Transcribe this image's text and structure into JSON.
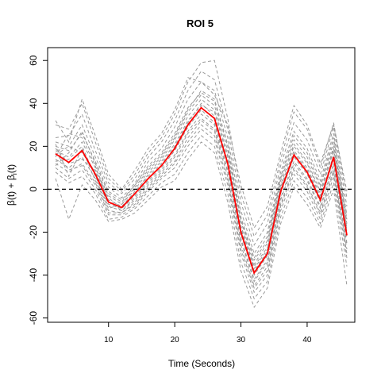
{
  "chart_data": {
    "type": "line",
    "title": "ROI 5",
    "xlabel": "Time (Seconds)",
    "ylabel_parts": {
      "p1": "β(t) + β",
      "sub": "i",
      "p2": "(t)"
    },
    "xlim": [
      0.8,
      47.2
    ],
    "ylim": [
      -62,
      66
    ],
    "x_ticks": [
      10,
      20,
      30,
      40
    ],
    "x_tick_labels": [
      "10",
      "20",
      "30",
      "40"
    ],
    "y_ticks": [
      -60,
      -40,
      -20,
      0,
      20,
      40,
      60
    ],
    "y_tick_labels": [
      "-60",
      "-40",
      "-20",
      "0",
      "20",
      "40",
      "60"
    ],
    "reference_line": {
      "y": 0,
      "style": "dashed",
      "color": "#000000"
    },
    "x": [
      2,
      4,
      6,
      8,
      10,
      12,
      14,
      16,
      18,
      20,
      22,
      24,
      26,
      28,
      30,
      32,
      34,
      36,
      38,
      40,
      42,
      44,
      46
    ],
    "mean_series": {
      "color": "#ff0000",
      "style": "solid",
      "values": [
        16.5,
        12.5,
        18,
        7,
        -6,
        -8.5,
        -2,
        5,
        11,
        19,
        30,
        38,
        33,
        12,
        -20,
        -39,
        -30,
        -1,
        16,
        8,
        -5,
        15,
        -21.5
      ]
    },
    "individual_series_style": {
      "color": "#9a9a9a",
      "style": "dashed"
    },
    "individual_series": [
      [
        18,
        15,
        22,
        10,
        -3,
        -7,
        0,
        8,
        14,
        23,
        34,
        42,
        37,
        16,
        -17,
        -36,
        -27,
        2,
        20,
        12,
        -2,
        18,
        -18
      ],
      [
        14,
        10,
        15,
        5,
        -8,
        -10,
        -4,
        3,
        9,
        16,
        27,
        35,
        30,
        9,
        -23,
        -42,
        -33,
        -4,
        13,
        5,
        -8,
        12,
        -25
      ],
      [
        20,
        18,
        26,
        13,
        -1,
        -5,
        2,
        11,
        17,
        26,
        38,
        45,
        41,
        20,
        -14,
        -33,
        -24,
        5,
        23,
        15,
        1,
        22,
        -15
      ],
      [
        12,
        8,
        12,
        3,
        -10,
        -11,
        -6,
        1,
        7,
        13,
        24,
        32,
        27,
        6,
        -26,
        -45,
        -36,
        -7,
        10,
        2,
        -11,
        9,
        -28
      ],
      [
        22,
        20,
        30,
        15,
        1,
        -4,
        3,
        13,
        19,
        29,
        42,
        50,
        46,
        24,
        -10,
        -30,
        -20,
        8,
        27,
        19,
        4,
        26,
        -12
      ],
      [
        10,
        5,
        9,
        0,
        -12,
        -12,
        -8,
        -1,
        5,
        10,
        20,
        28,
        23,
        2,
        -30,
        -48,
        -40,
        -10,
        7,
        -1,
        -14,
        6,
        -32
      ],
      [
        24,
        25,
        35,
        18,
        3,
        -2,
        5,
        15,
        22,
        32,
        46,
        55,
        51,
        28,
        -6,
        -26,
        -16,
        11,
        31,
        23,
        7,
        29,
        -8
      ],
      [
        8,
        3,
        6,
        -2,
        -14,
        -13,
        -9,
        -3,
        3,
        7,
        17,
        25,
        20,
        -2,
        -34,
        -51,
        -43,
        -13,
        4,
        -4,
        -16,
        3,
        -36
      ],
      [
        30,
        28,
        40,
        22,
        5,
        -1,
        7,
        17,
        24,
        35,
        50,
        59,
        60,
        33,
        -2,
        -22,
        -12,
        14,
        36,
        28,
        10,
        31,
        -4
      ],
      [
        5,
        -14,
        2,
        -5,
        -15,
        -14,
        -11,
        -5,
        1,
        4,
        14,
        22,
        17,
        -6,
        -38,
        -55,
        -46,
        -16,
        1,
        -7,
        -18,
        0,
        -45
      ],
      [
        32,
        22,
        42,
        25,
        7,
        0,
        9,
        19,
        26,
        37,
        52,
        50,
        44,
        30,
        2,
        -18,
        -8,
        17,
        39,
        30,
        12,
        30,
        -1
      ],
      [
        16,
        20,
        17,
        8,
        -5,
        -8,
        -1,
        6,
        12,
        20,
        31,
        40,
        34,
        13,
        -19,
        -38,
        -29,
        0,
        17,
        9,
        -4,
        16,
        -20
      ],
      [
        13,
        14,
        20,
        6,
        -7,
        -9,
        -3,
        4,
        10,
        18,
        29,
        37,
        31,
        11,
        -21,
        -40,
        -31,
        -2,
        15,
        7,
        -6,
        14,
        -23
      ],
      [
        19,
        12,
        14,
        9,
        -4,
        -9,
        -2,
        7,
        13,
        21,
        32,
        39,
        36,
        15,
        -18,
        -37,
        -28,
        1,
        18,
        10,
        -3,
        19,
        -19
      ],
      [
        15,
        26,
        24,
        11,
        -6,
        -10,
        -5,
        2,
        8,
        15,
        26,
        33,
        28,
        8,
        -24,
        -43,
        -34,
        -5,
        12,
        4,
        -9,
        11,
        -26
      ],
      [
        21,
        6,
        19,
        4,
        -9,
        -7,
        1,
        9,
        15,
        24,
        36,
        44,
        39,
        18,
        -15,
        -35,
        -25,
        4,
        21,
        13,
        -1,
        20,
        -16
      ],
      [
        11,
        17,
        27,
        12,
        -2,
        -6,
        2,
        10,
        16,
        25,
        37,
        46,
        42,
        21,
        -13,
        -32,
        -22,
        6,
        25,
        17,
        2,
        24,
        -14
      ],
      [
        17,
        9,
        11,
        2,
        -11,
        -11,
        -7,
        0,
        6,
        12,
        22,
        30,
        25,
        4,
        -28,
        -46,
        -38,
        -8,
        9,
        1,
        -12,
        8,
        -30
      ]
    ]
  }
}
